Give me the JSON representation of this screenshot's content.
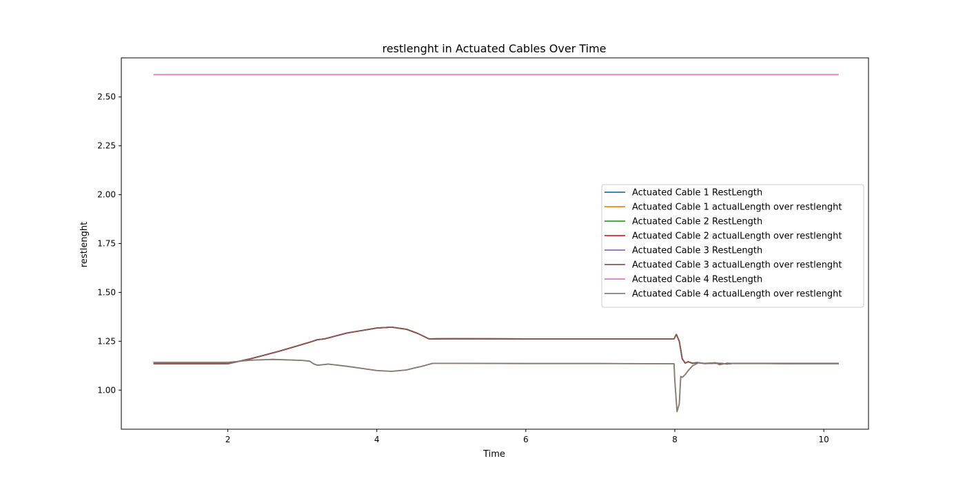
{
  "chart_data": {
    "type": "line",
    "title": "restlenght in Actuated Cables Over Time",
    "xlabel": "Time",
    "ylabel": "restlenght",
    "xlim": [
      0.57,
      10.6
    ],
    "ylim": [
      0.8,
      2.7
    ],
    "xticks": [
      2,
      4,
      6,
      8,
      10
    ],
    "xtick_labels": [
      "2",
      "4",
      "6",
      "8",
      "10"
    ],
    "yticks": [
      1.0,
      1.25,
      1.5,
      1.75,
      2.0,
      2.25,
      2.5
    ],
    "ytick_labels": [
      "1.00",
      "1.25",
      "1.50",
      "1.75",
      "2.00",
      "2.25",
      "2.50"
    ],
    "grid": false,
    "legend_position": "center-right",
    "series": [
      {
        "name": "Actuated Cable 1 RestLength",
        "color": "#1f77b4",
        "points": [
          [
            1.0,
            1.135
          ],
          [
            2.0,
            1.135
          ],
          [
            2.3,
            1.16
          ],
          [
            2.7,
            1.2
          ],
          [
            3.1,
            1.245
          ],
          [
            3.2,
            1.258
          ],
          [
            3.3,
            1.262
          ],
          [
            3.6,
            1.292
          ],
          [
            4.0,
            1.318
          ],
          [
            4.2,
            1.322
          ],
          [
            4.4,
            1.311
          ],
          [
            4.55,
            1.29
          ],
          [
            4.7,
            1.262
          ],
          [
            5.0,
            1.263
          ],
          [
            6.0,
            1.262
          ],
          [
            7.0,
            1.262
          ],
          [
            7.99,
            1.262
          ],
          [
            8.02,
            1.285
          ],
          [
            8.06,
            1.25
          ],
          [
            8.1,
            1.16
          ],
          [
            8.14,
            1.138
          ],
          [
            8.18,
            1.145
          ],
          [
            8.24,
            1.137
          ],
          [
            8.3,
            1.141
          ],
          [
            8.4,
            1.136
          ],
          [
            8.55,
            1.138
          ],
          [
            8.7,
            1.134
          ],
          [
            8.8,
            1.137
          ],
          [
            9.5,
            1.136
          ],
          [
            10.2,
            1.136
          ]
        ]
      },
      {
        "name": "Actuated Cable 1 actualLength over restlenght",
        "color": "#ff7f0e",
        "points": [
          [
            1.0,
            1.142
          ],
          [
            2.0,
            1.142
          ],
          [
            2.3,
            1.153
          ],
          [
            2.6,
            1.157
          ],
          [
            3.0,
            1.152
          ],
          [
            3.1,
            1.148
          ],
          [
            3.15,
            1.135
          ],
          [
            3.2,
            1.127
          ],
          [
            3.35,
            1.133
          ],
          [
            3.6,
            1.122
          ],
          [
            4.0,
            1.1
          ],
          [
            4.2,
            1.096
          ],
          [
            4.4,
            1.103
          ],
          [
            4.5,
            1.113
          ],
          [
            4.6,
            1.121
          ],
          [
            4.75,
            1.137
          ],
          [
            5.0,
            1.137
          ],
          [
            6.0,
            1.136
          ],
          [
            7.0,
            1.136
          ],
          [
            7.99,
            1.135
          ],
          [
            8.0,
            1.05
          ],
          [
            8.03,
            0.89
          ],
          [
            8.06,
            0.93
          ],
          [
            8.08,
            1.07
          ],
          [
            8.1,
            1.065
          ],
          [
            8.14,
            1.08
          ],
          [
            8.18,
            1.1
          ],
          [
            8.24,
            1.125
          ],
          [
            8.32,
            1.14
          ],
          [
            8.4,
            1.137
          ],
          [
            8.55,
            1.14
          ],
          [
            8.6,
            1.13
          ],
          [
            8.7,
            1.138
          ],
          [
            8.8,
            1.136
          ],
          [
            9.5,
            1.136
          ],
          [
            10.2,
            1.136
          ]
        ]
      },
      {
        "name": "Actuated Cable 2 RestLength",
        "color": "#2ca02c",
        "points": [
          [
            1.0,
            1.135
          ],
          [
            2.0,
            1.135
          ],
          [
            2.3,
            1.16
          ],
          [
            2.7,
            1.2
          ],
          [
            3.1,
            1.245
          ],
          [
            3.2,
            1.258
          ],
          [
            3.3,
            1.262
          ],
          [
            3.6,
            1.292
          ],
          [
            4.0,
            1.318
          ],
          [
            4.2,
            1.322
          ],
          [
            4.4,
            1.311
          ],
          [
            4.55,
            1.29
          ],
          [
            4.7,
            1.262
          ],
          [
            5.0,
            1.263
          ],
          [
            6.0,
            1.262
          ],
          [
            7.0,
            1.262
          ],
          [
            7.99,
            1.262
          ],
          [
            8.02,
            1.285
          ],
          [
            8.06,
            1.25
          ],
          [
            8.1,
            1.16
          ],
          [
            8.14,
            1.138
          ],
          [
            8.18,
            1.145
          ],
          [
            8.24,
            1.137
          ],
          [
            8.3,
            1.141
          ],
          [
            8.4,
            1.136
          ],
          [
            8.55,
            1.138
          ],
          [
            8.7,
            1.134
          ],
          [
            8.8,
            1.137
          ],
          [
            9.5,
            1.136
          ],
          [
            10.2,
            1.136
          ]
        ]
      },
      {
        "name": "Actuated Cable 2 actualLength over restlenght",
        "color": "#d62728",
        "points": [
          [
            1.0,
            1.135
          ],
          [
            2.0,
            1.135
          ],
          [
            2.3,
            1.16
          ],
          [
            2.7,
            1.2
          ],
          [
            3.1,
            1.245
          ],
          [
            3.2,
            1.258
          ],
          [
            3.3,
            1.262
          ],
          [
            3.6,
            1.292
          ],
          [
            4.0,
            1.318
          ],
          [
            4.2,
            1.322
          ],
          [
            4.4,
            1.311
          ],
          [
            4.55,
            1.29
          ],
          [
            4.7,
            1.262
          ],
          [
            5.0,
            1.263
          ],
          [
            6.0,
            1.262
          ],
          [
            7.0,
            1.262
          ],
          [
            7.99,
            1.262
          ],
          [
            8.02,
            1.285
          ],
          [
            8.06,
            1.25
          ],
          [
            8.1,
            1.16
          ],
          [
            8.14,
            1.138
          ],
          [
            8.18,
            1.145
          ],
          [
            8.24,
            1.137
          ],
          [
            8.3,
            1.141
          ],
          [
            8.4,
            1.136
          ],
          [
            8.55,
            1.138
          ],
          [
            8.7,
            1.134
          ],
          [
            8.8,
            1.137
          ],
          [
            9.5,
            1.136
          ],
          [
            10.2,
            1.136
          ]
        ]
      },
      {
        "name": "Actuated Cable 3 RestLength",
        "color": "#9467bd",
        "points": [
          [
            1.0,
            1.135
          ],
          [
            2.0,
            1.135
          ],
          [
            2.3,
            1.16
          ],
          [
            2.7,
            1.2
          ],
          [
            3.1,
            1.245
          ],
          [
            3.2,
            1.258
          ],
          [
            3.3,
            1.262
          ],
          [
            3.6,
            1.292
          ],
          [
            4.0,
            1.318
          ],
          [
            4.2,
            1.322
          ],
          [
            4.4,
            1.311
          ],
          [
            4.55,
            1.29
          ],
          [
            4.7,
            1.262
          ],
          [
            5.0,
            1.263
          ],
          [
            6.0,
            1.262
          ],
          [
            7.0,
            1.262
          ],
          [
            7.99,
            1.262
          ],
          [
            8.02,
            1.285
          ],
          [
            8.06,
            1.25
          ],
          [
            8.1,
            1.16
          ],
          [
            8.14,
            1.138
          ],
          [
            8.18,
            1.145
          ],
          [
            8.24,
            1.137
          ],
          [
            8.3,
            1.141
          ],
          [
            8.4,
            1.136
          ],
          [
            8.55,
            1.138
          ],
          [
            8.7,
            1.134
          ],
          [
            8.8,
            1.137
          ],
          [
            9.5,
            1.136
          ],
          [
            10.2,
            1.136
          ]
        ]
      },
      {
        "name": "Actuated Cable 3 actualLength over restlenght",
        "color": "#8c564b",
        "points": [
          [
            1.0,
            1.135
          ],
          [
            2.0,
            1.135
          ],
          [
            2.3,
            1.16
          ],
          [
            2.7,
            1.2
          ],
          [
            3.1,
            1.245
          ],
          [
            3.2,
            1.258
          ],
          [
            3.3,
            1.262
          ],
          [
            3.6,
            1.292
          ],
          [
            4.0,
            1.318
          ],
          [
            4.2,
            1.322
          ],
          [
            4.4,
            1.311
          ],
          [
            4.55,
            1.29
          ],
          [
            4.7,
            1.262
          ],
          [
            5.0,
            1.263
          ],
          [
            6.0,
            1.262
          ],
          [
            7.0,
            1.262
          ],
          [
            7.99,
            1.262
          ],
          [
            8.02,
            1.285
          ],
          [
            8.06,
            1.25
          ],
          [
            8.1,
            1.16
          ],
          [
            8.14,
            1.138
          ],
          [
            8.18,
            1.145
          ],
          [
            8.24,
            1.137
          ],
          [
            8.3,
            1.141
          ],
          [
            8.4,
            1.136
          ],
          [
            8.55,
            1.138
          ],
          [
            8.7,
            1.134
          ],
          [
            8.8,
            1.137
          ],
          [
            9.5,
            1.136
          ],
          [
            10.2,
            1.136
          ]
        ]
      },
      {
        "name": "Actuated Cable 4 RestLength",
        "color": "#e377c2",
        "points": [
          [
            1.0,
            2.614
          ],
          [
            10.2,
            2.614
          ]
        ]
      },
      {
        "name": "Actuated Cable 4 actualLength over restlenght",
        "color": "#7f7f7f",
        "points": [
          [
            1.0,
            1.142
          ],
          [
            2.0,
            1.142
          ],
          [
            2.3,
            1.153
          ],
          [
            2.6,
            1.157
          ],
          [
            3.0,
            1.152
          ],
          [
            3.1,
            1.148
          ],
          [
            3.15,
            1.135
          ],
          [
            3.2,
            1.127
          ],
          [
            3.35,
            1.133
          ],
          [
            3.6,
            1.122
          ],
          [
            4.0,
            1.1
          ],
          [
            4.2,
            1.096
          ],
          [
            4.4,
            1.103
          ],
          [
            4.5,
            1.113
          ],
          [
            4.6,
            1.121
          ],
          [
            4.75,
            1.137
          ],
          [
            5.0,
            1.137
          ],
          [
            6.0,
            1.136
          ],
          [
            7.0,
            1.136
          ],
          [
            7.99,
            1.135
          ],
          [
            8.0,
            1.05
          ],
          [
            8.03,
            0.89
          ],
          [
            8.06,
            0.93
          ],
          [
            8.08,
            1.07
          ],
          [
            8.1,
            1.065
          ],
          [
            8.14,
            1.08
          ],
          [
            8.18,
            1.1
          ],
          [
            8.24,
            1.125
          ],
          [
            8.32,
            1.14
          ],
          [
            8.4,
            1.137
          ],
          [
            8.55,
            1.14
          ],
          [
            8.6,
            1.13
          ],
          [
            8.7,
            1.138
          ],
          [
            8.8,
            1.136
          ],
          [
            9.5,
            1.136
          ],
          [
            10.2,
            1.136
          ]
        ]
      }
    ]
  }
}
